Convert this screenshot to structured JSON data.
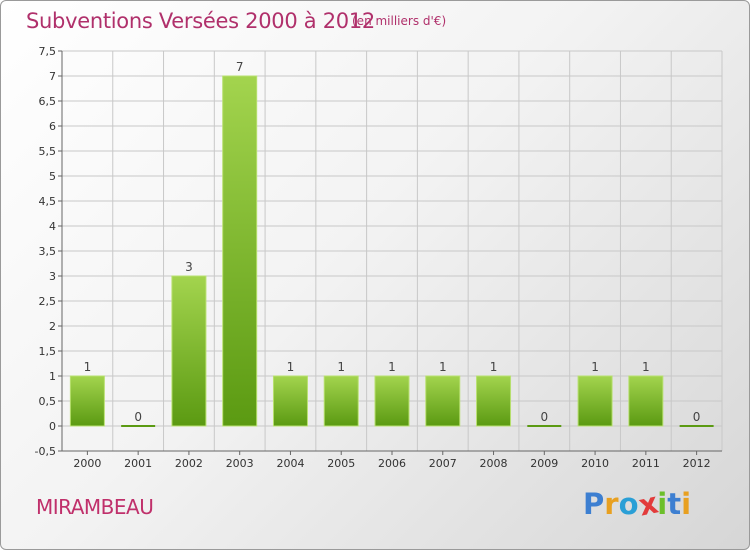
{
  "header": {
    "title": "Subventions Versées 2000 à 2012",
    "unit": "(en milliers d'€)"
  },
  "footer": {
    "commune": "MIRAMBEAU",
    "brand": [
      "P",
      "r",
      "o",
      "x",
      "i",
      "t",
      "i"
    ],
    "brand_colors": [
      "#3d7fd1",
      "#e8a020",
      "#2a9fd6",
      "#e23b3b",
      "#6cbf2a",
      "#3d7fd1",
      "#e8a020"
    ]
  },
  "chart_data": {
    "type": "bar",
    "title": "Subventions Versées 2000 à 2012",
    "subtitle": "(en milliers d'€)",
    "categories": [
      "2000",
      "2001",
      "2002",
      "2003",
      "2004",
      "2005",
      "2006",
      "2007",
      "2008",
      "2009",
      "2010",
      "2011",
      "2012"
    ],
    "values": [
      1,
      0,
      3,
      7,
      1,
      1,
      1,
      1,
      1,
      0,
      1,
      1,
      0
    ],
    "value_labels": [
      "1",
      "0",
      "3",
      "7",
      "1",
      "1",
      "1",
      "1",
      "1",
      "0",
      "1",
      "1",
      "0"
    ],
    "ylim": [
      -0.5,
      7.5
    ],
    "yticks": [
      "-0,5",
      "0",
      "0,5",
      "1",
      "1,5",
      "2",
      "2,5",
      "3",
      "3,5",
      "4",
      "4,5",
      "5",
      "5,5",
      "6",
      "6,5",
      "7",
      "7,5"
    ],
    "ytick_values": [
      -0.5,
      0,
      0.5,
      1,
      1.5,
      2,
      2.5,
      3,
      3.5,
      4,
      4.5,
      5,
      5.5,
      6,
      6.5,
      7,
      7.5
    ],
    "grid": true,
    "colors": {
      "bar_light": "#a3d44e",
      "bar_dark": "#5b9a12",
      "grid": "#c8c8c8"
    }
  }
}
